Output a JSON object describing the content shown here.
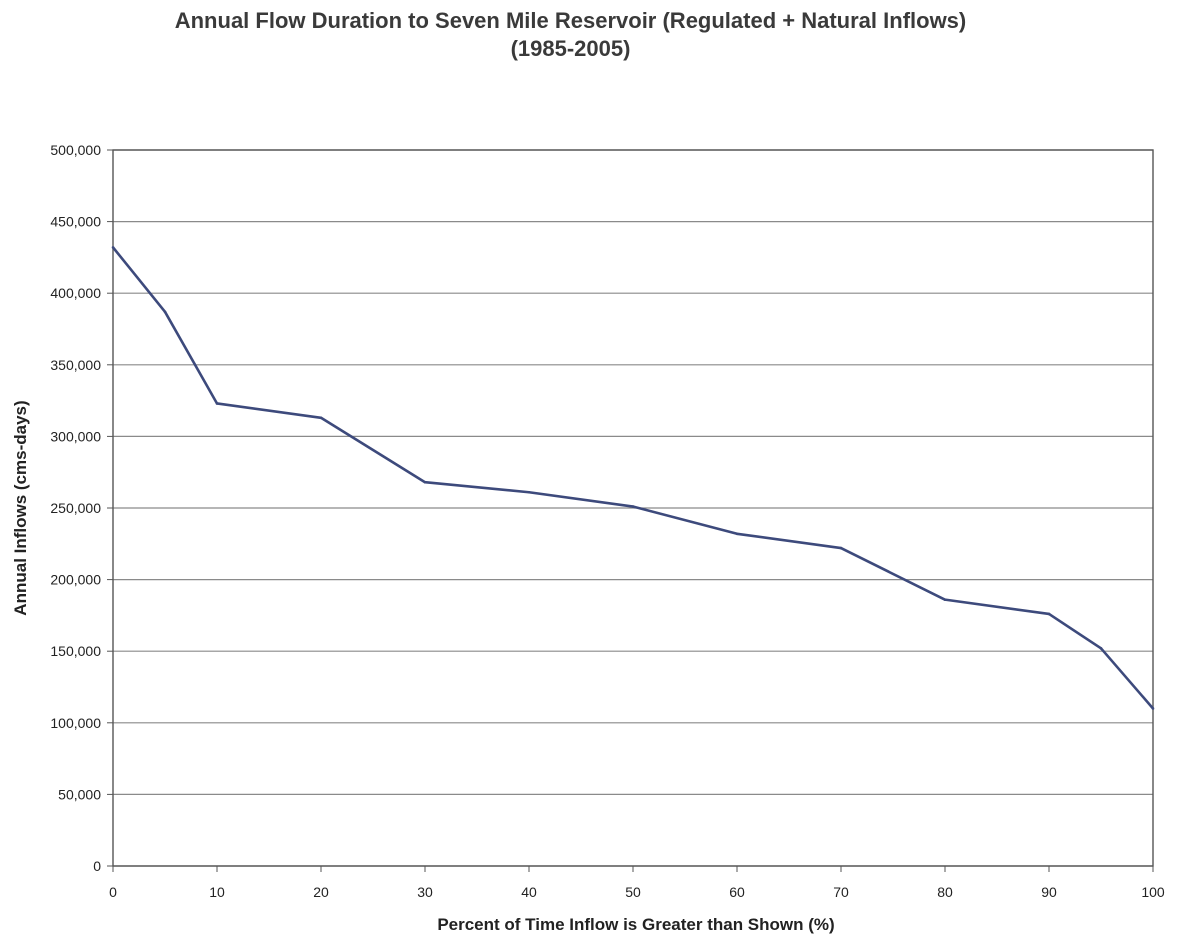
{
  "chart_data": {
    "type": "line",
    "title": "Annual Flow Duration to Seven Mile Reservoir (Regulated + Natural Inflows)",
    "subtitle": "(1985-2005)",
    "xlabel": "Percent of Time Inflow is Greater than Shown (%)",
    "ylabel": "Annual Inflows (cms-days)",
    "xlim": [
      0,
      100
    ],
    "ylim": [
      0,
      500000
    ],
    "x_ticks": [
      0,
      10,
      20,
      30,
      40,
      50,
      60,
      70,
      80,
      90,
      100
    ],
    "x_tick_labels": [
      "0",
      "10",
      "20",
      "30",
      "40",
      "50",
      "60",
      "70",
      "80",
      "90",
      "100"
    ],
    "y_ticks": [
      0,
      50000,
      100000,
      150000,
      200000,
      250000,
      300000,
      350000,
      400000,
      450000,
      500000
    ],
    "y_tick_labels": [
      "0",
      "50,000",
      "100,000",
      "150,000",
      "200,000",
      "250,000",
      "300,000",
      "350,000",
      "400,000",
      "450,000",
      "500,000"
    ],
    "grid": true,
    "line_color": "#3d4a7c",
    "series": [
      {
        "x": [
          0,
          5,
          10,
          20,
          30,
          40,
          50,
          60,
          70,
          80,
          90,
          95,
          100
        ],
        "y": [
          432000,
          387000,
          323000,
          313000,
          268000,
          261000,
          251000,
          232000,
          222000,
          186000,
          176000,
          152000,
          110000
        ]
      }
    ]
  }
}
